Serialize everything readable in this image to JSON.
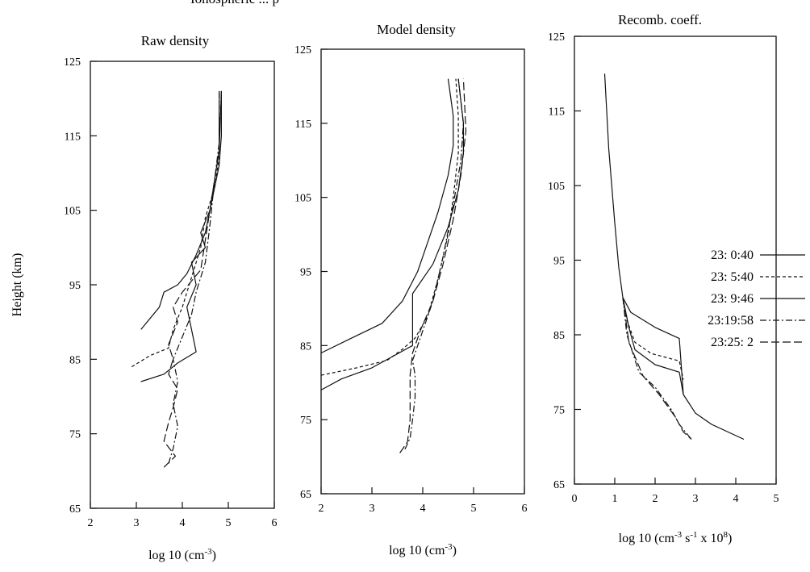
{
  "figure_title": "Ionospheric ... p",
  "chart_data": [
    {
      "type": "line",
      "title": "Raw density",
      "xlabel": "log 10 (cm^-3)",
      "xlabel_base": "log 10 (cm",
      "xlabel_sup": "-3",
      "xlabel_end": ")",
      "ylabel": "Height (km)",
      "xlim": [
        2,
        6
      ],
      "ylim": [
        65,
        125
      ],
      "xticks": [
        2,
        3,
        4,
        5,
        6
      ],
      "yticks": [
        65,
        75,
        85,
        95,
        105,
        115,
        125
      ],
      "series": [
        {
          "dash": "solid",
          "points": [
            [
              3.1,
              89
            ],
            [
              3.5,
              92
            ],
            [
              3.6,
              94
            ],
            [
              3.9,
              95
            ],
            [
              4.1,
              96.5
            ],
            [
              4.3,
              99
            ],
            [
              4.5,
              102
            ],
            [
              4.6,
              105
            ],
            [
              4.7,
              108
            ],
            [
              4.8,
              111
            ],
            [
              4.85,
              115
            ],
            [
              4.85,
              121
            ]
          ]
        },
        {
          "dash": "dash",
          "points": [
            [
              2.9,
              84
            ],
            [
              3.3,
              85.5
            ],
            [
              3.7,
              86.5
            ],
            [
              3.8,
              89
            ],
            [
              4.0,
              92
            ],
            [
              4.2,
              96
            ],
            [
              4.4,
              100
            ],
            [
              4.5,
              104
            ],
            [
              4.7,
              108
            ],
            [
              4.8,
              112
            ],
            [
              4.8,
              121
            ]
          ]
        },
        {
          "dash": "solid",
          "points": [
            [
              3.1,
              82
            ],
            [
              3.6,
              83
            ],
            [
              3.9,
              84.5
            ],
            [
              4.3,
              86
            ],
            [
              4.2,
              89
            ],
            [
              4.1,
              92
            ],
            [
              4.3,
              95
            ],
            [
              4.2,
              98
            ],
            [
              4.5,
              100
            ],
            [
              4.4,
              102
            ],
            [
              4.6,
              105
            ],
            [
              4.7,
              109
            ],
            [
              4.8,
              113
            ],
            [
              4.85,
              121
            ]
          ]
        },
        {
          "dash": "dashdot",
          "points": [
            [
              3.7,
              71
            ],
            [
              3.8,
              73
            ],
            [
              3.9,
              76
            ],
            [
              3.8,
              79
            ],
            [
              3.9,
              82
            ],
            [
              3.8,
              85
            ],
            [
              4.0,
              88
            ],
            [
              4.2,
              91
            ],
            [
              4.3,
              94
            ],
            [
              4.5,
              98
            ],
            [
              4.6,
              103
            ],
            [
              4.7,
              109
            ],
            [
              4.8,
              114
            ],
            [
              4.8,
              121
            ]
          ]
        },
        {
          "dash": "longdash",
          "points": [
            [
              3.6,
              70.5
            ],
            [
              3.85,
              72
            ],
            [
              3.6,
              74
            ],
            [
              3.7,
              76.5
            ],
            [
              3.8,
              78.5
            ],
            [
              3.9,
              81
            ],
            [
              3.7,
              83
            ],
            [
              3.8,
              85
            ],
            [
              3.7,
              87
            ],
            [
              3.9,
              90
            ],
            [
              3.8,
              92
            ],
            [
              4.0,
              94
            ],
            [
              4.4,
              97
            ],
            [
              4.5,
              101
            ],
            [
              4.6,
              105
            ],
            [
              4.7,
              109
            ],
            [
              4.8,
              113
            ],
            [
              4.8,
              121
            ]
          ]
        }
      ]
    },
    {
      "type": "line",
      "title": "Model density",
      "xlabel": "log 10 (cm^-3)",
      "xlabel_base": "log 10 (cm",
      "xlabel_sup": "-3",
      "xlabel_end": ")",
      "ylabel": "",
      "xlim": [
        2,
        6
      ],
      "ylim": [
        65,
        125
      ],
      "xticks": [
        2,
        3,
        4,
        5,
        6
      ],
      "yticks": [
        65,
        75,
        85,
        95,
        105,
        115,
        125
      ],
      "series": [
        {
          "dash": "solid",
          "points": [
            [
              2.0,
              84
            ],
            [
              2.6,
              86
            ],
            [
              3.2,
              88
            ],
            [
              3.6,
              91
            ],
            [
              3.9,
              95
            ],
            [
              4.1,
              99
            ],
            [
              4.3,
              103
            ],
            [
              4.5,
              108
            ],
            [
              4.6,
              112
            ],
            [
              4.6,
              116
            ],
            [
              4.5,
              121
            ]
          ]
        },
        {
          "dash": "dash",
          "points": [
            [
              2.0,
              81
            ],
            [
              2.7,
              82
            ],
            [
              3.3,
              83
            ],
            [
              3.6,
              84.5
            ],
            [
              3.85,
              86
            ],
            [
              4.1,
              89
            ],
            [
              4.3,
              94
            ],
            [
              4.5,
              100
            ],
            [
              4.6,
              105
            ],
            [
              4.7,
              111
            ],
            [
              4.7,
              116
            ],
            [
              4.65,
              121
            ]
          ]
        },
        {
          "dash": "solid",
          "points": [
            [
              2.0,
              79
            ],
            [
              2.4,
              80.5
            ],
            [
              3.0,
              82
            ],
            [
              3.4,
              83.5
            ],
            [
              3.8,
              85
            ],
            [
              3.8,
              92
            ],
            [
              4.2,
              96
            ],
            [
              4.5,
              101
            ],
            [
              4.7,
              106
            ],
            [
              4.8,
              111
            ],
            [
              4.8,
              115
            ],
            [
              4.7,
              121
            ]
          ]
        },
        {
          "dash": "dashdot",
          "points": [
            [
              3.65,
              71
            ],
            [
              3.75,
              72.5
            ],
            [
              3.8,
              75
            ],
            [
              3.85,
              78
            ],
            [
              3.85,
              81
            ],
            [
              3.8,
              83
            ],
            [
              3.95,
              86
            ],
            [
              4.2,
              91
            ],
            [
              4.4,
              97
            ],
            [
              4.6,
              104
            ],
            [
              4.75,
              110
            ],
            [
              4.8,
              115
            ],
            [
              4.7,
              121
            ]
          ]
        },
        {
          "dash": "longdash",
          "points": [
            [
              3.55,
              70.5
            ],
            [
              3.7,
              72
            ],
            [
              3.75,
              75
            ],
            [
              3.75,
              78.5
            ],
            [
              3.75,
              81
            ],
            [
              3.8,
              84
            ],
            [
              3.95,
              87
            ],
            [
              4.2,
              91
            ],
            [
              4.4,
              96
            ],
            [
              4.6,
              102
            ],
            [
              4.75,
              108
            ],
            [
              4.85,
              114
            ],
            [
              4.8,
              121
            ]
          ]
        }
      ]
    },
    {
      "type": "line",
      "title": "Recomb. coeff.",
      "xlabel": "log 10 (cm^-3 s^-1 x 10^8)",
      "xlabel_base": "log 10 (cm",
      "xlabel_sup": "-3",
      "xlabel_mid1": " s",
      "xlabel_sup2": "-1",
      "xlabel_mid2": " x 10",
      "xlabel_sup3": "8",
      "xlabel_end": ")",
      "ylabel": "",
      "xlim": [
        0,
        5
      ],
      "ylim": [
        65,
        125
      ],
      "xticks": [
        0,
        1,
        2,
        3,
        4,
        5
      ],
      "yticks": [
        65,
        75,
        85,
        95,
        105,
        115,
        125
      ],
      "series": [
        {
          "dash": "solid",
          "points": [
            [
              0.75,
              120
            ],
            [
              0.85,
              110
            ],
            [
              1.0,
              100
            ],
            [
              1.1,
              94
            ],
            [
              1.2,
              90
            ],
            [
              1.4,
              88
            ],
            [
              2.0,
              86
            ],
            [
              2.6,
              84.5
            ],
            [
              2.7,
              77
            ],
            [
              3.0,
              74.5
            ],
            [
              3.4,
              73
            ],
            [
              4.2,
              71
            ]
          ]
        },
        {
          "dash": "dash",
          "points": [
            [
              1.2,
              90
            ],
            [
              1.3,
              87
            ],
            [
              1.5,
              84
            ],
            [
              1.9,
              82.5
            ],
            [
              2.6,
              81.5
            ],
            [
              2.7,
              79
            ]
          ]
        },
        {
          "dash": "solid",
          "points": [
            [
              1.2,
              90
            ],
            [
              1.35,
              86
            ],
            [
              1.5,
              83
            ],
            [
              2.0,
              81
            ],
            [
              2.6,
              80
            ],
            [
              2.7,
              77
            ]
          ]
        },
        {
          "dash": "dashdot",
          "points": [
            [
              1.2,
              90
            ],
            [
              1.3,
              85
            ],
            [
              1.6,
              80
            ],
            [
              2.0,
              78
            ],
            [
              2.4,
              75
            ],
            [
              2.6,
              73
            ],
            [
              2.9,
              71
            ]
          ]
        },
        {
          "dash": "longdash",
          "points": [
            [
              1.2,
              90
            ],
            [
              1.35,
              84
            ],
            [
              1.7,
              79.5
            ],
            [
              2.1,
              77
            ],
            [
              2.5,
              74
            ],
            [
              2.7,
              72
            ],
            [
              2.9,
              71
            ]
          ]
        }
      ]
    }
  ],
  "legend": {
    "placement": "right of third panel",
    "entries": [
      {
        "label": "23:  0:40",
        "dash": "solid"
      },
      {
        "label": "23:  5:40",
        "dash": "dash"
      },
      {
        "label": "23:  9:46",
        "dash": "solid"
      },
      {
        "label": "23:19:58",
        "dash": "dashdot"
      },
      {
        "label": "23:25:  2",
        "dash": "longdash"
      }
    ]
  }
}
